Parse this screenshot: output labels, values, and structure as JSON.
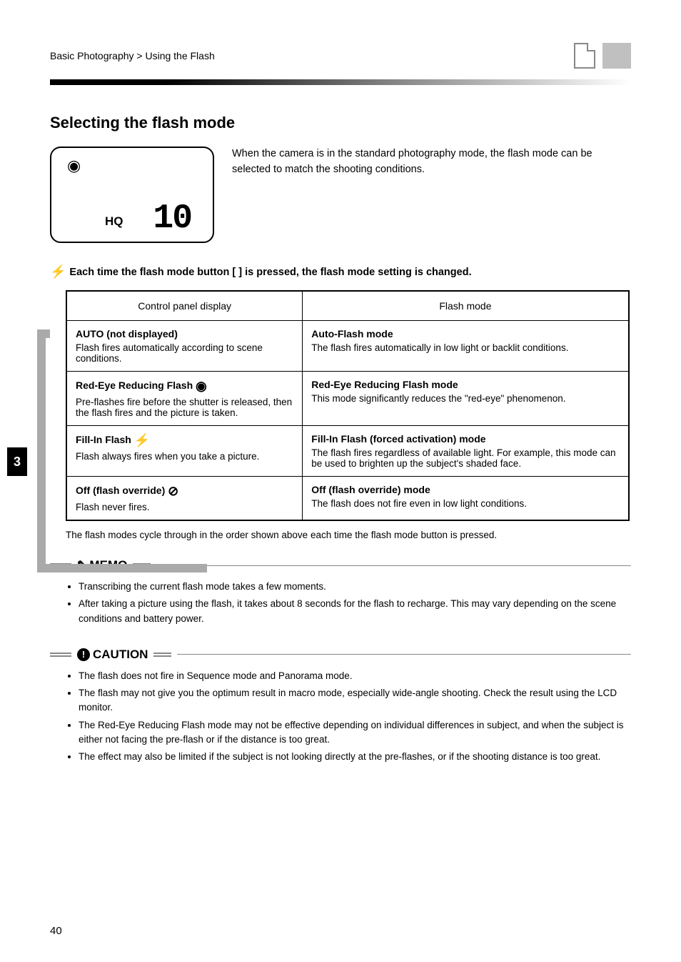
{
  "breadcrumb": "Basic Photography > Using the Flash",
  "page_number_side": "3",
  "page_number_footer": "40",
  "section_title": "Selecting the flash mode",
  "intro_text": "When the camera is in the standard photography mode, the flash mode can be selected to match the shooting conditions.",
  "lcd": {
    "hq_label": "HQ",
    "counter": "10"
  },
  "flash_mode_line": "Each time the flash mode button [      ] is pressed, the flash mode setting is changed.",
  "table": {
    "headers": [
      "Control panel display",
      "Flash mode"
    ],
    "rows": [
      {
        "panel": {
          "name": "AUTO (not displayed)",
          "desc": "Flash fires automatically according to scene conditions."
        },
        "mode": {
          "name": "Auto-Flash mode",
          "desc": "The flash fires automatically in low light or backlit conditions."
        }
      },
      {
        "panel": {
          "name": "Red-Eye Reducing Flash",
          "desc": "Pre-flashes fire before the shutter is released, then the flash fires and the picture is taken.",
          "icon": "redeye"
        },
        "mode": {
          "name": "Red-Eye Reducing Flash mode",
          "desc": "This mode significantly reduces the \"red-eye\" phenomenon."
        }
      },
      {
        "panel": {
          "name": "Fill-In Flash",
          "desc": "Flash always fires when you take a picture.",
          "icon": "bolt"
        },
        "mode": {
          "name": "Fill-In Flash (forced activation) mode",
          "desc": "The flash fires regardless of available light. For example, this mode can be used to brighten up the subject's shaded face."
        }
      },
      {
        "panel": {
          "name": "Off (flash override)",
          "desc": "Flash never fires.",
          "icon": "off"
        },
        "mode": {
          "name": "Off (flash override) mode",
          "desc": "The flash does not fire even in low light conditions."
        }
      }
    ]
  },
  "cycle_note": "The flash modes cycle through in the order shown above each time the flash mode button is pressed.",
  "memo_label": "MEMO",
  "memo_items": [
    "Transcribing the current flash mode takes a few moments.",
    "After taking a picture using the flash, it takes about 8 seconds for the flash to recharge. This may vary depending on the scene conditions and battery power."
  ],
  "caution_label": "CAUTION",
  "caution_items": [
    "The flash does not fire in Sequence mode and Panorama mode.",
    "The flash may not give you the optimum result in macro mode, especially wide-angle shooting. Check the result using the LCD monitor.",
    "The Red-Eye Reducing Flash mode may not be effective depending on individual differences in subject, and when the subject is either not facing the pre-flash or if the distance is too great.",
    "The effect may also be limited if the subject is not looking directly at the pre-flashes, or if the shooting distance is too great."
  ]
}
